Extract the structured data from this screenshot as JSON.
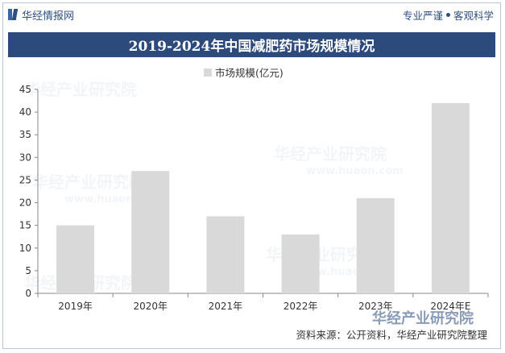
{
  "header": {
    "brand": "华经情报网",
    "tagline_left": "专业严谨",
    "tagline_right": "客观科学"
  },
  "watermark": {
    "text": "华经产业研究院",
    "url": "www.huaon.com"
  },
  "colors": {
    "title_bg": "#2c4a7c",
    "bar": "#d9d9d9",
    "brand": "#2f4f7f"
  },
  "footer": {
    "source": "资料来源：公开资料，华经产业研究院整理"
  },
  "chart_data": {
    "type": "bar",
    "title": "2019-2024年中国减肥药市场规模情况",
    "categories": [
      "2019年",
      "2020年",
      "2021年",
      "2022年",
      "2023年",
      "2024年E"
    ],
    "series": [
      {
        "name": "市场规模(亿元)",
        "values": [
          15,
          27,
          17,
          13,
          21,
          42
        ]
      }
    ],
    "ylim": [
      0,
      45
    ],
    "yticks": [
      0,
      5,
      10,
      15,
      20,
      25,
      30,
      35,
      40,
      45
    ],
    "grid": false,
    "legend": "top-center"
  }
}
